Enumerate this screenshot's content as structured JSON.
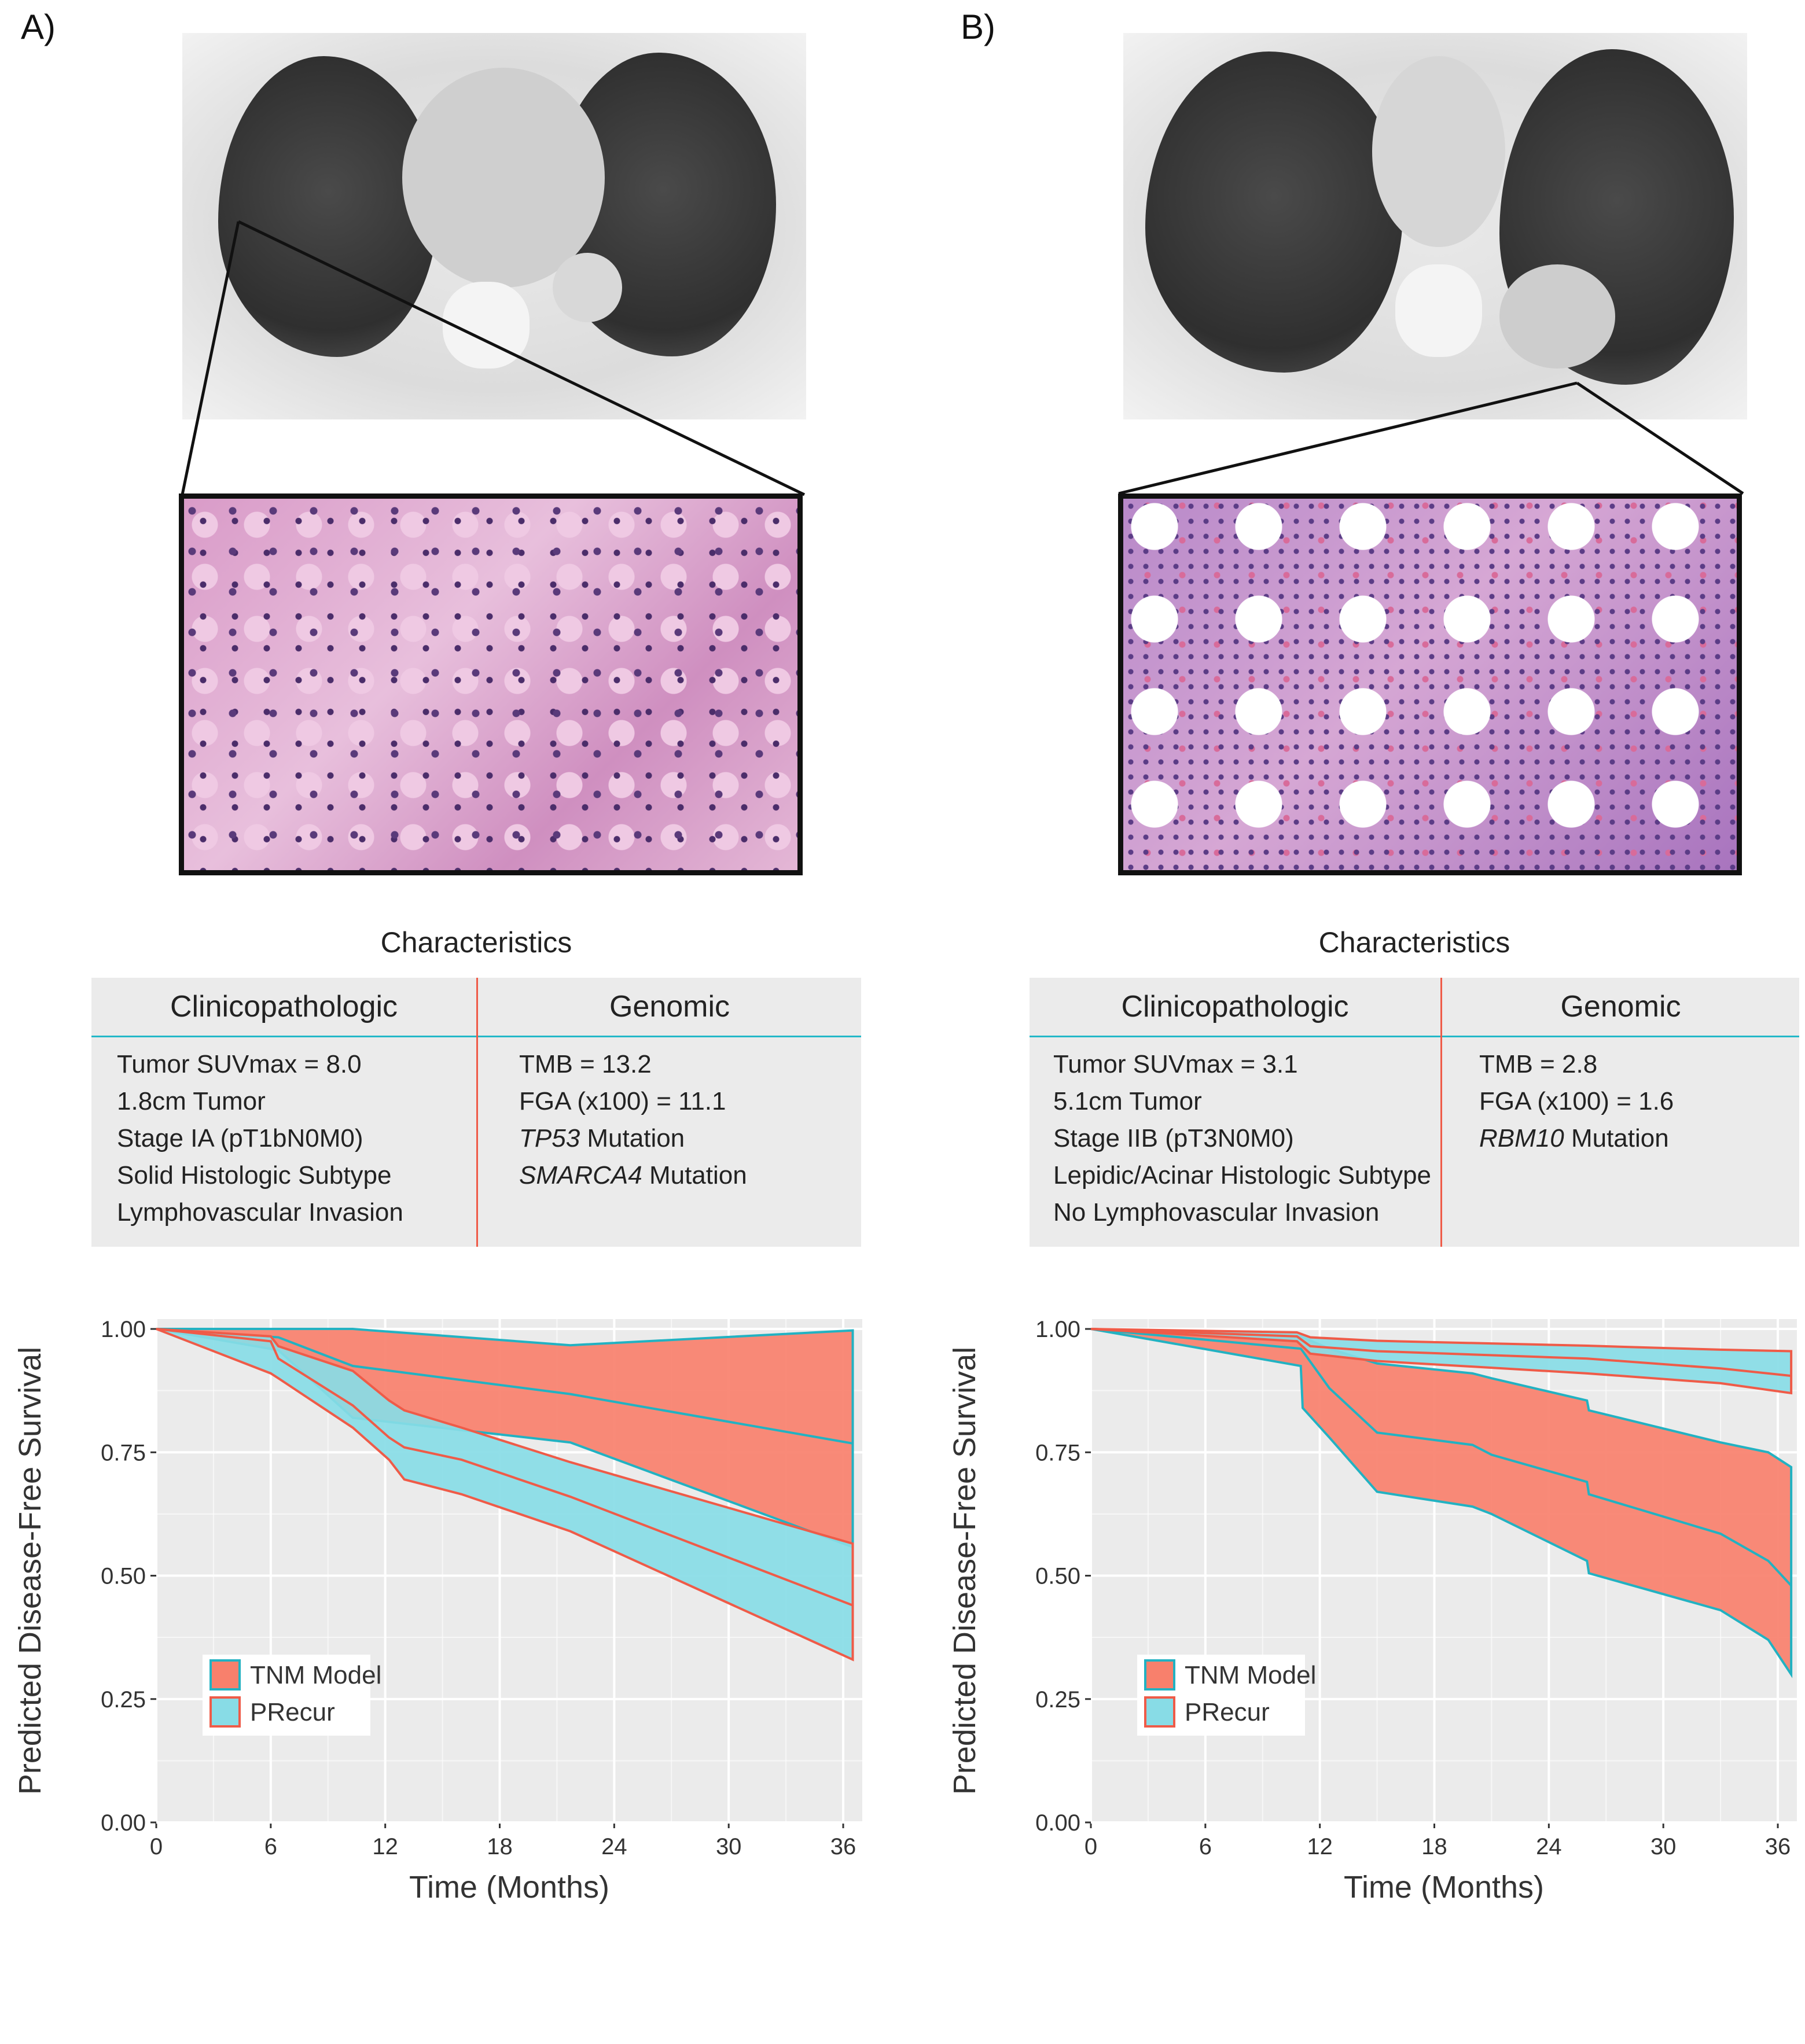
{
  "panels": [
    {
      "label": "A)",
      "characteristics_title": "Characteristics",
      "clinicopathologic_header": "Clinicopathologic",
      "genomic_header": "Genomic",
      "clinicopathologic": [
        "Tumor SUVmax = 8.0",
        "1.8cm Tumor",
        "Stage IA (pT1bN0M0)",
        "Solid Histologic Subtype",
        "Lymphovascular Invasion"
      ],
      "genomic": [
        {
          "gene": "",
          "text": "TMB = 13.2"
        },
        {
          "gene": "",
          "text": "FGA (x100) = 11.1"
        },
        {
          "gene": "TP53",
          "text": " Mutation"
        },
        {
          "gene": "SMARCA4",
          "text": " Mutation"
        }
      ]
    },
    {
      "label": "B)",
      "characteristics_title": "Characteristics",
      "clinicopathologic_header": "Clinicopathologic",
      "genomic_header": "Genomic",
      "clinicopathologic": [
        "Tumor SUVmax = 3.1",
        "5.1cm Tumor",
        "Stage IIB (pT3N0M0)",
        "Lepidic/Acinar Histologic Subtype",
        "No Lymphovascular Invasion"
      ],
      "genomic": [
        {
          "gene": "",
          "text": "TMB = 2.8"
        },
        {
          "gene": "",
          "text": "FGA (x100) = 1.6"
        },
        {
          "gene": "RBM10",
          "text": " Mutation"
        }
      ]
    }
  ],
  "colors": {
    "tnm_fill": "#f8806c",
    "precur_fill": "#88dce6",
    "tnm_line": "#22b2c2",
    "precur_line": "#ef5b48",
    "plot_bg": "#ebebeb",
    "grid": "#ffffff",
    "divider": "#ef5b48",
    "header_rule": "#23b8c8"
  },
  "chart_data": [
    {
      "type": "area",
      "panel": "A)",
      "xlabel": "Time (Months)",
      "ylabel": "Predicted Disease-Free Survival",
      "xlim": [
        0,
        37
      ],
      "ylim": [
        0,
        1.02
      ],
      "xticks": [
        0,
        6,
        12,
        18,
        24,
        30,
        36
      ],
      "xtick_labels": [
        "0",
        "6",
        "12",
        "18",
        "24",
        "30",
        "36"
      ],
      "yticks": [
        0,
        0.25,
        0.5,
        0.75,
        1.0
      ],
      "ytick_labels": [
        "0.00",
        "0.25",
        "0.50",
        "0.75",
        "1.00"
      ],
      "legend_position": "bottom-left",
      "series": [
        {
          "name": "TNM Model",
          "x": [
            0,
            6.4,
            10.3,
            21.7,
            36.5
          ],
          "upper": [
            1.0,
            1.0,
            1.0,
            0.967,
            0.997
          ],
          "mid": [
            1.0,
            0.983,
            0.925,
            0.868,
            0.768
          ],
          "lower": [
            1.0,
            0.957,
            0.82,
            0.77,
            0.558
          ]
        },
        {
          "name": "PRecur",
          "x": [
            0,
            6.0,
            6.4,
            10.3,
            12.2,
            13.0,
            16.0,
            21.7,
            36.5
          ],
          "upper": [
            1.0,
            0.985,
            0.965,
            0.915,
            0.855,
            0.835,
            0.8,
            0.73,
            0.565
          ],
          "mid": [
            1.0,
            0.975,
            0.94,
            0.845,
            0.78,
            0.76,
            0.735,
            0.66,
            0.44
          ],
          "lower": [
            1.0,
            0.91,
            0.9,
            0.8,
            0.735,
            0.695,
            0.665,
            0.59,
            0.33
          ]
        }
      ]
    },
    {
      "type": "area",
      "panel": "B)",
      "xlabel": "Time (Months)",
      "ylabel": "Predicted Disease-Free Survival",
      "xlim": [
        0,
        37
      ],
      "ylim": [
        0,
        1.02
      ],
      "xticks": [
        0,
        6,
        12,
        18,
        24,
        30,
        36
      ],
      "xtick_labels": [
        "0",
        "6",
        "12",
        "18",
        "24",
        "30",
        "36"
      ],
      "yticks": [
        0,
        0.25,
        0.5,
        0.75,
        1.0
      ],
      "ytick_labels": [
        "0.00",
        "0.25",
        "0.50",
        "0.75",
        "1.00"
      ],
      "legend_position": "bottom-left",
      "series": [
        {
          "name": "TNM Model",
          "x": [
            0,
            11.0,
            11.1,
            12.5,
            15.0,
            20.0,
            21.0,
            26.0,
            26.1,
            33.0,
            35.5,
            36.7
          ],
          "upper": [
            1.0,
            0.985,
            0.983,
            0.96,
            0.93,
            0.91,
            0.9,
            0.855,
            0.835,
            0.77,
            0.75,
            0.72
          ],
          "mid": [
            1.0,
            0.96,
            0.955,
            0.88,
            0.79,
            0.765,
            0.745,
            0.69,
            0.665,
            0.585,
            0.53,
            0.48
          ],
          "lower": [
            1.0,
            0.925,
            0.84,
            0.78,
            0.67,
            0.64,
            0.625,
            0.53,
            0.505,
            0.43,
            0.37,
            0.3
          ]
        },
        {
          "name": "PRecur",
          "x": [
            0,
            10.8,
            11.5,
            15.0,
            26.0,
            33.0,
            36.7
          ],
          "upper": [
            1.0,
            0.993,
            0.983,
            0.976,
            0.966,
            0.958,
            0.955
          ],
          "mid": [
            1.0,
            0.985,
            0.965,
            0.955,
            0.94,
            0.92,
            0.905
          ],
          "lower": [
            1.0,
            0.975,
            0.95,
            0.935,
            0.91,
            0.89,
            0.87
          ]
        }
      ]
    }
  ]
}
